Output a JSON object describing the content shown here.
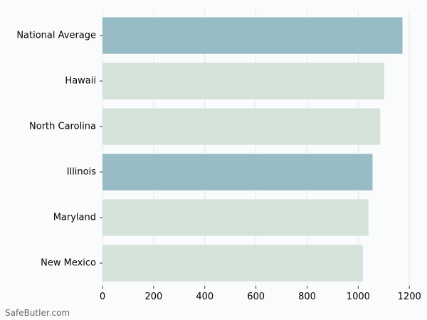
{
  "watermark": "SafeButler.com",
  "chart_data": {
    "type": "bar",
    "orientation": "horizontal",
    "categories": [
      "National Average",
      "Hawaii",
      "North Carolina",
      "Illinois",
      "Maryland",
      "New Mexico"
    ],
    "values": [
      1173,
      1102,
      1086,
      1056,
      1040,
      1018
    ],
    "highlight": [
      true,
      false,
      false,
      true,
      false,
      false
    ],
    "colors": {
      "highlight": "#97bcc5",
      "normal": "#d4e2d9",
      "grid": "#e6e6e6",
      "text": "#000000"
    },
    "xticks": [
      0,
      200,
      400,
      600,
      800,
      1000,
      1200
    ],
    "xlim": [
      0,
      1230
    ],
    "grid": true,
    "xlabel": "",
    "ylabel": "",
    "title": ""
  }
}
